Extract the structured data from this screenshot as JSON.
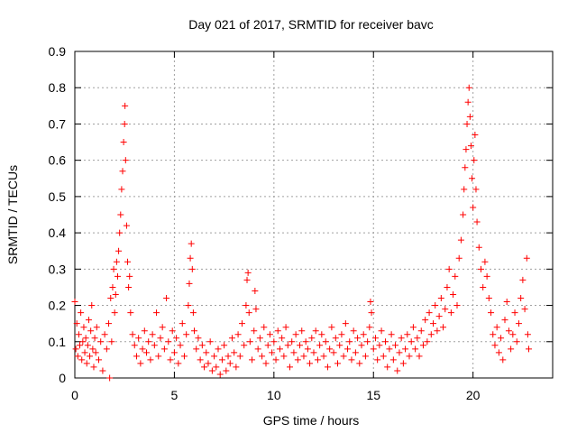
{
  "chart_data": {
    "type": "scatter",
    "title": "Day 021 of 2017, SRMTID for receiver bavc",
    "xlabel": "GPS time / hours",
    "ylabel": "SRMTID / TECUs",
    "xlim": [
      0,
      24
    ],
    "ylim": [
      0,
      0.9
    ],
    "xticks": [
      0,
      5,
      10,
      15,
      20
    ],
    "yticks": [
      0,
      0.1,
      0.2,
      0.3,
      0.4,
      0.5,
      0.6,
      0.7,
      0.8,
      0.9
    ],
    "xtick_labels": [
      "0",
      "5",
      "10",
      "15",
      "20"
    ],
    "ytick_labels": [
      "0",
      "0.1",
      "0.2",
      "0.3",
      "0.4",
      "0.5",
      "0.6",
      "0.7",
      "0.8",
      "0.9"
    ],
    "grid": true,
    "marker": "+",
    "color": "#ff0000",
    "series": [
      {
        "name": "SRMTID",
        "points": [
          [
            0.0,
            0.21
          ],
          [
            0.05,
            0.08
          ],
          [
            0.1,
            0.15
          ],
          [
            0.15,
            0.06
          ],
          [
            0.2,
            0.12
          ],
          [
            0.25,
            0.09
          ],
          [
            0.3,
            0.18
          ],
          [
            0.35,
            0.05
          ],
          [
            0.4,
            0.1
          ],
          [
            0.45,
            0.14
          ],
          [
            0.5,
            0.07
          ],
          [
            0.55,
            0.11
          ],
          [
            0.6,
            0.04
          ],
          [
            0.65,
            0.09
          ],
          [
            0.7,
            0.16
          ],
          [
            0.75,
            0.06
          ],
          [
            0.8,
            0.13
          ],
          [
            0.85,
            0.2
          ],
          [
            0.9,
            0.08
          ],
          [
            0.95,
            0.03
          ],
          [
            1.0,
            0.11
          ],
          [
            1.05,
            0.07
          ],
          [
            1.1,
            0.14
          ],
          [
            1.2,
            0.05
          ],
          [
            1.3,
            0.1
          ],
          [
            1.4,
            0.02
          ],
          [
            1.5,
            0.12
          ],
          [
            1.6,
            0.08
          ],
          [
            1.7,
            0.15
          ],
          [
            1.75,
            0.0
          ],
          [
            1.8,
            0.22
          ],
          [
            1.85,
            0.1
          ],
          [
            1.9,
            0.25
          ],
          [
            1.95,
            0.3
          ],
          [
            2.0,
            0.18
          ],
          [
            2.05,
            0.23
          ],
          [
            2.1,
            0.32
          ],
          [
            2.15,
            0.28
          ],
          [
            2.2,
            0.35
          ],
          [
            2.25,
            0.4
          ],
          [
            2.3,
            0.45
          ],
          [
            2.35,
            0.52
          ],
          [
            2.4,
            0.57
          ],
          [
            2.45,
            0.65
          ],
          [
            2.5,
            0.7
          ],
          [
            2.52,
            0.75
          ],
          [
            2.55,
            0.6
          ],
          [
            2.6,
            0.42
          ],
          [
            2.65,
            0.32
          ],
          [
            2.7,
            0.25
          ],
          [
            2.75,
            0.28
          ],
          [
            2.8,
            0.18
          ],
          [
            2.9,
            0.12
          ],
          [
            3.0,
            0.09
          ],
          [
            3.1,
            0.06
          ],
          [
            3.2,
            0.11
          ],
          [
            3.3,
            0.04
          ],
          [
            3.4,
            0.08
          ],
          [
            3.5,
            0.13
          ],
          [
            3.6,
            0.07
          ],
          [
            3.7,
            0.1
          ],
          [
            3.8,
            0.05
          ],
          [
            3.9,
            0.12
          ],
          [
            4.0,
            0.09
          ],
          [
            4.1,
            0.18
          ],
          [
            4.2,
            0.06
          ],
          [
            4.3,
            0.11
          ],
          [
            4.4,
            0.14
          ],
          [
            4.5,
            0.08
          ],
          [
            4.6,
            0.22
          ],
          [
            4.7,
            0.1
          ],
          [
            4.8,
            0.05
          ],
          [
            4.9,
            0.13
          ],
          [
            5.0,
            0.07
          ],
          [
            5.1,
            0.11
          ],
          [
            5.2,
            0.04
          ],
          [
            5.3,
            0.09
          ],
          [
            5.4,
            0.15
          ],
          [
            5.5,
            0.06
          ],
          [
            5.6,
            0.12
          ],
          [
            5.7,
            0.2
          ],
          [
            5.75,
            0.26
          ],
          [
            5.8,
            0.33
          ],
          [
            5.85,
            0.37
          ],
          [
            5.9,
            0.3
          ],
          [
            5.95,
            0.18
          ],
          [
            6.0,
            0.13
          ],
          [
            6.1,
            0.08
          ],
          [
            6.2,
            0.11
          ],
          [
            6.3,
            0.05
          ],
          [
            6.4,
            0.09
          ],
          [
            6.5,
            0.03
          ],
          [
            6.6,
            0.07
          ],
          [
            6.7,
            0.04
          ],
          [
            6.8,
            0.1
          ],
          [
            6.9,
            0.02
          ],
          [
            7.0,
            0.06
          ],
          [
            7.1,
            0.03
          ],
          [
            7.2,
            0.08
          ],
          [
            7.3,
            0.01
          ],
          [
            7.4,
            0.05
          ],
          [
            7.5,
            0.09
          ],
          [
            7.6,
            0.02
          ],
          [
            7.7,
            0.06
          ],
          [
            7.8,
            0.04
          ],
          [
            7.9,
            0.11
          ],
          [
            8.0,
            0.07
          ],
          [
            8.1,
            0.03
          ],
          [
            8.2,
            0.12
          ],
          [
            8.3,
            0.06
          ],
          [
            8.4,
            0.15
          ],
          [
            8.5,
            0.09
          ],
          [
            8.6,
            0.2
          ],
          [
            8.65,
            0.27
          ],
          [
            8.7,
            0.29
          ],
          [
            8.75,
            0.18
          ],
          [
            8.8,
            0.1
          ],
          [
            8.9,
            0.05
          ],
          [
            9.0,
            0.13
          ],
          [
            9.05,
            0.24
          ],
          [
            9.1,
            0.19
          ],
          [
            9.2,
            0.08
          ],
          [
            9.3,
            0.11
          ],
          [
            9.4,
            0.06
          ],
          [
            9.5,
            0.14
          ],
          [
            9.6,
            0.04
          ],
          [
            9.7,
            0.09
          ],
          [
            9.8,
            0.12
          ],
          [
            9.9,
            0.07
          ],
          [
            10.0,
            0.1
          ],
          [
            10.1,
            0.05
          ],
          [
            10.2,
            0.13
          ],
          [
            10.3,
            0.08
          ],
          [
            10.4,
            0.11
          ],
          [
            10.5,
            0.06
          ],
          [
            10.6,
            0.14
          ],
          [
            10.7,
            0.09
          ],
          [
            10.8,
            0.03
          ],
          [
            10.9,
            0.1
          ],
          [
            11.0,
            0.07
          ],
          [
            11.1,
            0.12
          ],
          [
            11.2,
            0.05
          ],
          [
            11.3,
            0.09
          ],
          [
            11.4,
            0.13
          ],
          [
            11.5,
            0.06
          ],
          [
            11.6,
            0.1
          ],
          [
            11.7,
            0.08
          ],
          [
            11.8,
            0.04
          ],
          [
            11.9,
            0.11
          ],
          [
            12.0,
            0.07
          ],
          [
            12.1,
            0.13
          ],
          [
            12.2,
            0.05
          ],
          [
            12.3,
            0.09
          ],
          [
            12.4,
            0.12
          ],
          [
            12.5,
            0.06
          ],
          [
            12.6,
            0.1
          ],
          [
            12.7,
            0.03
          ],
          [
            12.8,
            0.08
          ],
          [
            12.9,
            0.14
          ],
          [
            13.0,
            0.07
          ],
          [
            13.1,
            0.11
          ],
          [
            13.2,
            0.04
          ],
          [
            13.3,
            0.09
          ],
          [
            13.4,
            0.12
          ],
          [
            13.5,
            0.06
          ],
          [
            13.6,
            0.15
          ],
          [
            13.7,
            0.08
          ],
          [
            13.8,
            0.1
          ],
          [
            13.9,
            0.05
          ],
          [
            14.0,
            0.13
          ],
          [
            14.1,
            0.07
          ],
          [
            14.2,
            0.11
          ],
          [
            14.3,
            0.04
          ],
          [
            14.4,
            0.09
          ],
          [
            14.5,
            0.12
          ],
          [
            14.6,
            0.06
          ],
          [
            14.7,
            0.1
          ],
          [
            14.8,
            0.14
          ],
          [
            14.85,
            0.21
          ],
          [
            14.9,
            0.18
          ],
          [
            15.0,
            0.08
          ],
          [
            15.1,
            0.11
          ],
          [
            15.2,
            0.05
          ],
          [
            15.3,
            0.09
          ],
          [
            15.4,
            0.13
          ],
          [
            15.5,
            0.06
          ],
          [
            15.6,
            0.1
          ],
          [
            15.7,
            0.03
          ],
          [
            15.8,
            0.08
          ],
          [
            15.9,
            0.12
          ],
          [
            16.0,
            0.05
          ],
          [
            16.1,
            0.09
          ],
          [
            16.2,
            0.02
          ],
          [
            16.3,
            0.07
          ],
          [
            16.4,
            0.11
          ],
          [
            16.5,
            0.04
          ],
          [
            16.6,
            0.08
          ],
          [
            16.7,
            0.12
          ],
          [
            16.8,
            0.06
          ],
          [
            16.9,
            0.1
          ],
          [
            17.0,
            0.14
          ],
          [
            17.1,
            0.08
          ],
          [
            17.2,
            0.11
          ],
          [
            17.3,
            0.06
          ],
          [
            17.4,
            0.13
          ],
          [
            17.5,
            0.09
          ],
          [
            17.6,
            0.16
          ],
          [
            17.7,
            0.1
          ],
          [
            17.8,
            0.18
          ],
          [
            17.9,
            0.12
          ],
          [
            18.0,
            0.15
          ],
          [
            18.1,
            0.2
          ],
          [
            18.2,
            0.13
          ],
          [
            18.3,
            0.17
          ],
          [
            18.4,
            0.22
          ],
          [
            18.5,
            0.14
          ],
          [
            18.6,
            0.19
          ],
          [
            18.7,
            0.25
          ],
          [
            18.8,
            0.3
          ],
          [
            18.9,
            0.18
          ],
          [
            19.0,
            0.23
          ],
          [
            19.1,
            0.28
          ],
          [
            19.2,
            0.2
          ],
          [
            19.3,
            0.33
          ],
          [
            19.4,
            0.38
          ],
          [
            19.5,
            0.45
          ],
          [
            19.55,
            0.52
          ],
          [
            19.6,
            0.58
          ],
          [
            19.65,
            0.63
          ],
          [
            19.7,
            0.7
          ],
          [
            19.75,
            0.76
          ],
          [
            19.8,
            0.8
          ],
          [
            19.85,
            0.72
          ],
          [
            19.9,
            0.64
          ],
          [
            19.95,
            0.55
          ],
          [
            20.0,
            0.47
          ],
          [
            20.05,
            0.6
          ],
          [
            20.1,
            0.67
          ],
          [
            20.15,
            0.52
          ],
          [
            20.2,
            0.43
          ],
          [
            20.3,
            0.36
          ],
          [
            20.4,
            0.3
          ],
          [
            20.5,
            0.25
          ],
          [
            20.6,
            0.32
          ],
          [
            20.7,
            0.28
          ],
          [
            20.8,
            0.22
          ],
          [
            20.9,
            0.18
          ],
          [
            21.0,
            0.12
          ],
          [
            21.1,
            0.09
          ],
          [
            21.2,
            0.14
          ],
          [
            21.3,
            0.07
          ],
          [
            21.4,
            0.11
          ],
          [
            21.5,
            0.05
          ],
          [
            21.6,
            0.16
          ],
          [
            21.7,
            0.21
          ],
          [
            21.8,
            0.13
          ],
          [
            21.9,
            0.08
          ],
          [
            22.0,
            0.12
          ],
          [
            22.1,
            0.18
          ],
          [
            22.2,
            0.1
          ],
          [
            22.3,
            0.15
          ],
          [
            22.4,
            0.22
          ],
          [
            22.5,
            0.27
          ],
          [
            22.6,
            0.19
          ],
          [
            22.7,
            0.33
          ],
          [
            22.75,
            0.12
          ],
          [
            22.8,
            0.08
          ]
        ]
      }
    ]
  }
}
